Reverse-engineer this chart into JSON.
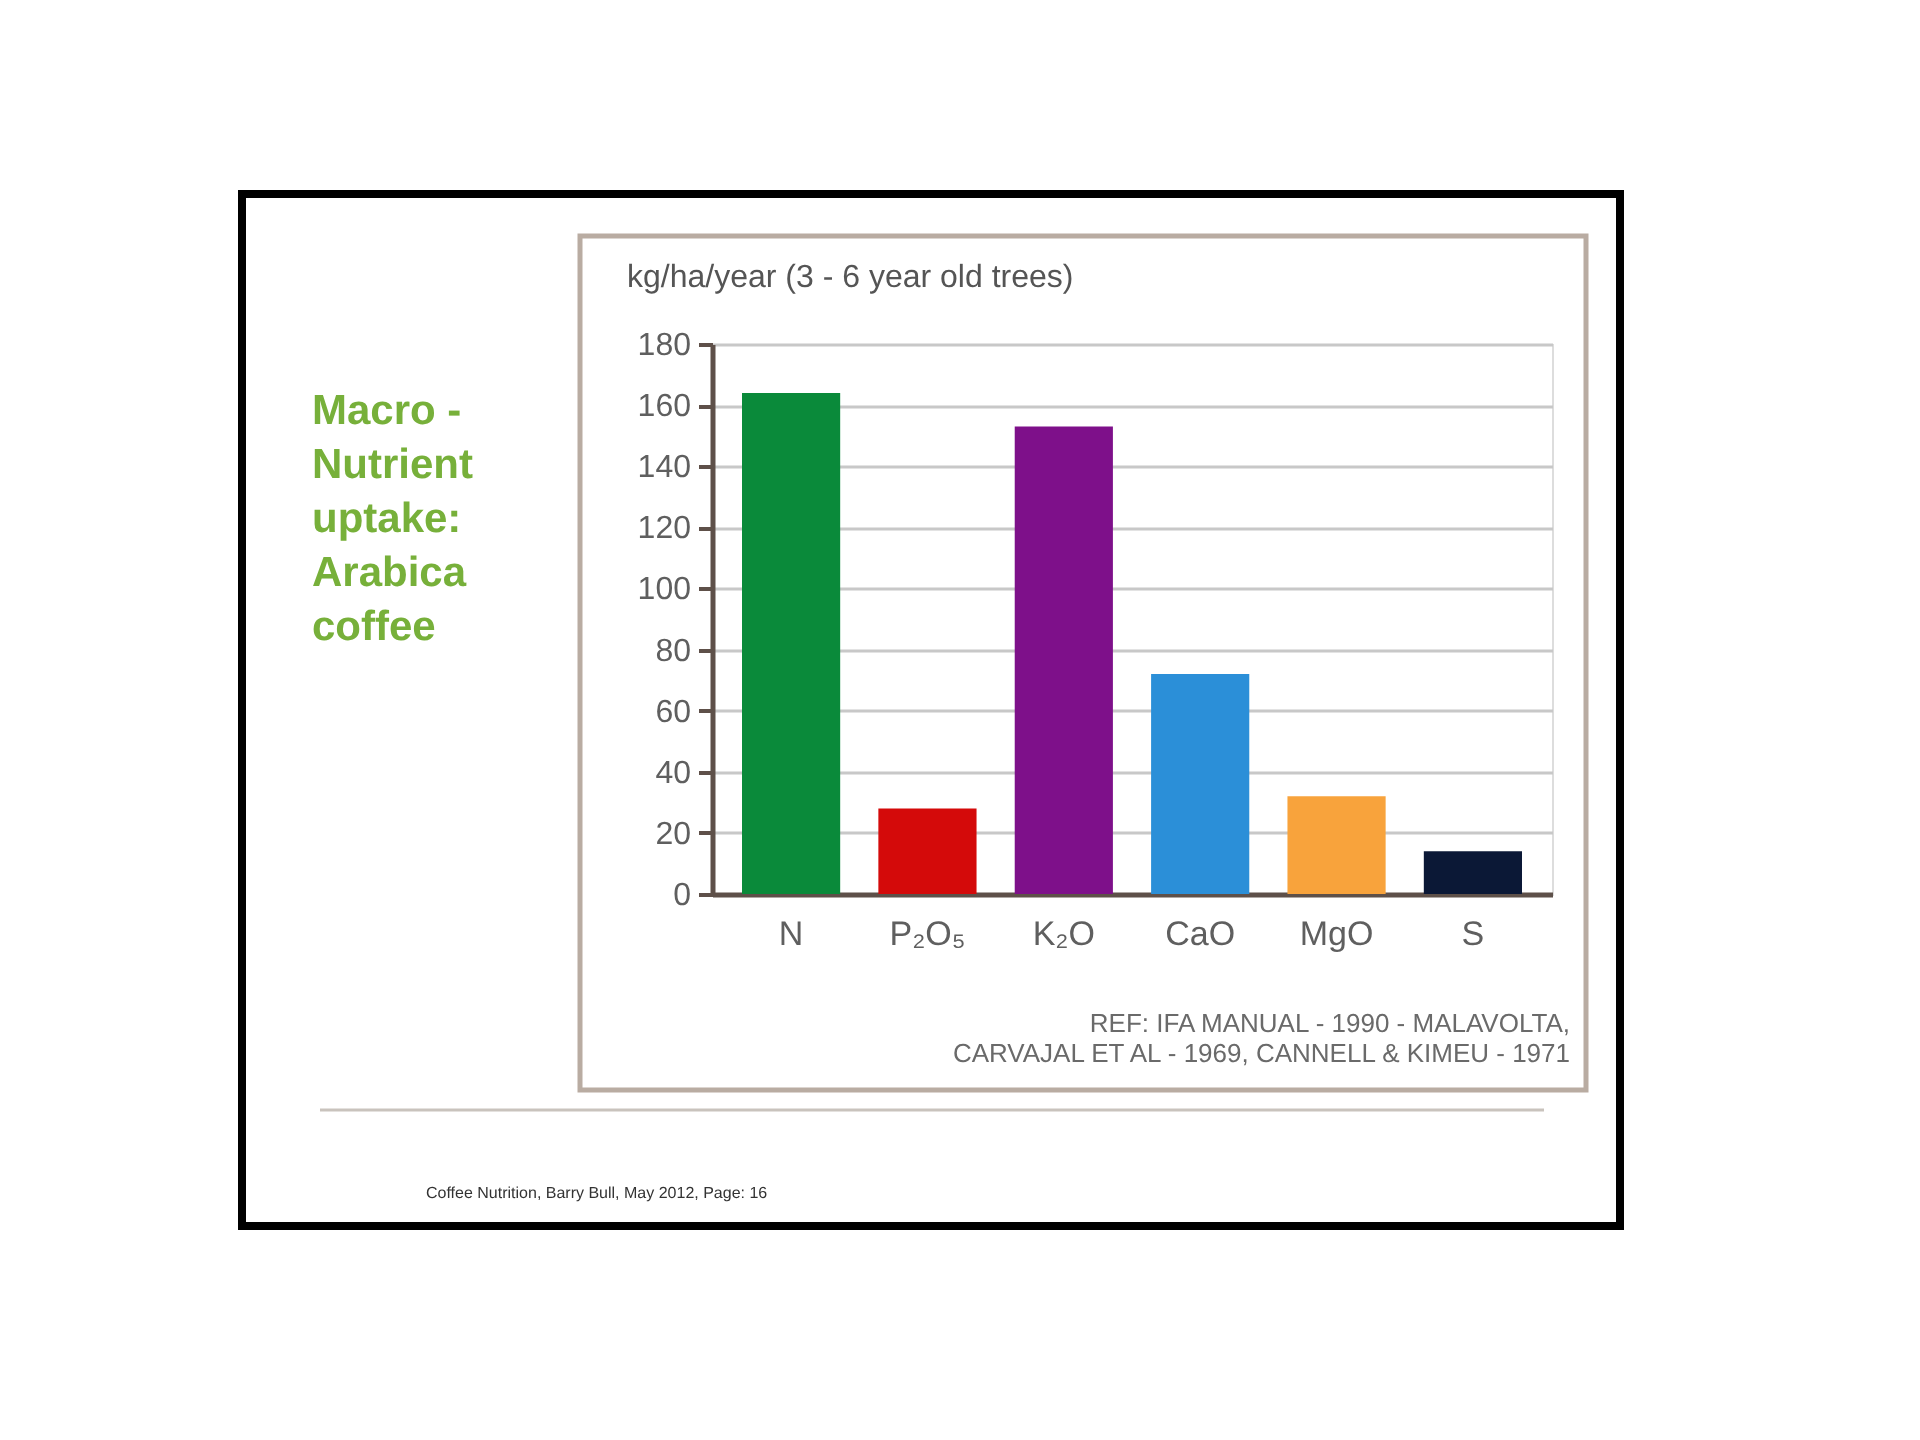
{
  "chart_data": {
    "type": "bar",
    "title": "Macro - Nutrient uptake: Arabica coffee",
    "ylabel": "kg/ha/year (3 - 6 year old trees)",
    "categories": [
      "N",
      "P₂O₅",
      "K₂O",
      "CaO",
      "MgO",
      "S"
    ],
    "values": [
      164,
      28,
      153,
      72,
      32,
      14
    ],
    "colors": [
      "#0a8a3a",
      "#d40a0a",
      "#7e108a",
      "#2b8fd8",
      "#f8a33c",
      "#0b1836"
    ],
    "ylim": [
      0,
      180
    ],
    "yticks": [
      0,
      20,
      40,
      60,
      80,
      100,
      120,
      140,
      160,
      180
    ],
    "grid": "y",
    "annotations": [
      "REF: IFA MANUAL - 1990 - MALAVOLTA,",
      "CARVAJAL ET AL - 1969, CANNELL & KIMEU - 1971",
      "Coffee Nutrition, Barry Bull, May 2012, Page: 16"
    ]
  }
}
